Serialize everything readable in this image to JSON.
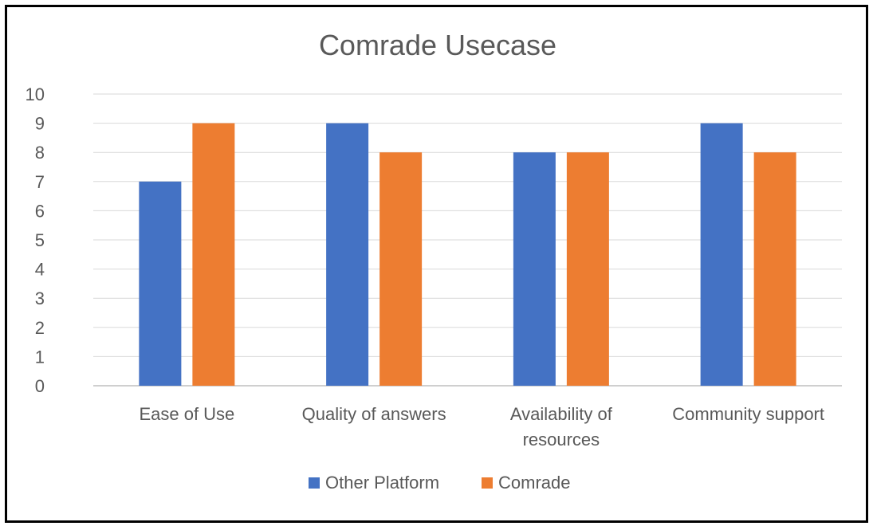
{
  "chart_data": {
    "type": "bar",
    "title": "Comrade Usecase",
    "xlabel": "",
    "ylabel": "",
    "categories": [
      [
        "Ease of Use"
      ],
      [
        "Quality of answers"
      ],
      [
        "Availability of",
        "resources"
      ],
      [
        "Community support"
      ]
    ],
    "series": [
      {
        "name": "Other Platform",
        "color": "#4472C4",
        "values": [
          7,
          9,
          8,
          9
        ]
      },
      {
        "name": "Comrade",
        "color": "#ED7D31",
        "values": [
          9,
          8,
          8,
          8
        ]
      }
    ],
    "ylim": [
      0,
      10
    ],
    "yticks": [
      "0",
      "1",
      "2",
      "3",
      "4",
      "5",
      "6",
      "7",
      "8",
      "9",
      "10"
    ],
    "grid": true,
    "legend_position": "bottom"
  }
}
